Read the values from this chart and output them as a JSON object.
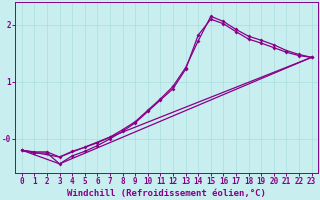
{
  "background_color": "#c8eef0",
  "line_color": "#880088",
  "xlim": [
    -0.5,
    23.5
  ],
  "ylim": [
    -0.6,
    2.4
  ],
  "yticks": [
    0,
    1,
    2
  ],
  "ytick_labels": [
    "-0",
    "1",
    "2"
  ],
  "xticks": [
    0,
    1,
    2,
    3,
    4,
    5,
    6,
    7,
    8,
    9,
    10,
    11,
    12,
    13,
    14,
    15,
    16,
    17,
    18,
    19,
    20,
    21,
    22,
    23
  ],
  "xlabel": "Windchill (Refroidissement éolien,°C)",
  "grid_color": "#aadddd",
  "line1_x": [
    0,
    1,
    2,
    3,
    4,
    5,
    6,
    7,
    8,
    9,
    10,
    11,
    12,
    13,
    14,
    15,
    16,
    17,
    18,
    19,
    20,
    21,
    22,
    23
  ],
  "line1_y": [
    -0.2,
    -0.25,
    -0.25,
    -0.44,
    -0.3,
    -0.22,
    -0.12,
    0.0,
    0.13,
    0.28,
    0.48,
    0.68,
    0.88,
    1.22,
    1.82,
    2.1,
    2.02,
    1.88,
    1.75,
    1.68,
    1.6,
    1.52,
    1.46,
    1.43
  ],
  "line2_x": [
    0,
    1,
    2,
    3,
    4,
    5,
    6,
    7,
    8,
    9,
    10,
    11,
    12,
    13,
    14,
    15,
    16,
    17,
    18,
    19,
    20,
    21,
    22,
    23
  ],
  "line2_y": [
    -0.2,
    -0.23,
    -0.23,
    -0.32,
    -0.22,
    -0.15,
    -0.07,
    0.03,
    0.16,
    0.3,
    0.5,
    0.7,
    0.92,
    1.25,
    1.72,
    2.15,
    2.06,
    1.92,
    1.8,
    1.73,
    1.65,
    1.55,
    1.48,
    1.43
  ],
  "line3_x": [
    0,
    3,
    23
  ],
  "line3_y": [
    -0.2,
    -0.44,
    1.43
  ],
  "line4_x": [
    0,
    3,
    23
  ],
  "line4_y": [
    -0.2,
    -0.32,
    1.43
  ],
  "linewidth": 0.9,
  "markersize": 2.0,
  "font_color": "#880088",
  "tick_fontsize": 5.5,
  "xlabel_fontsize": 6.5
}
